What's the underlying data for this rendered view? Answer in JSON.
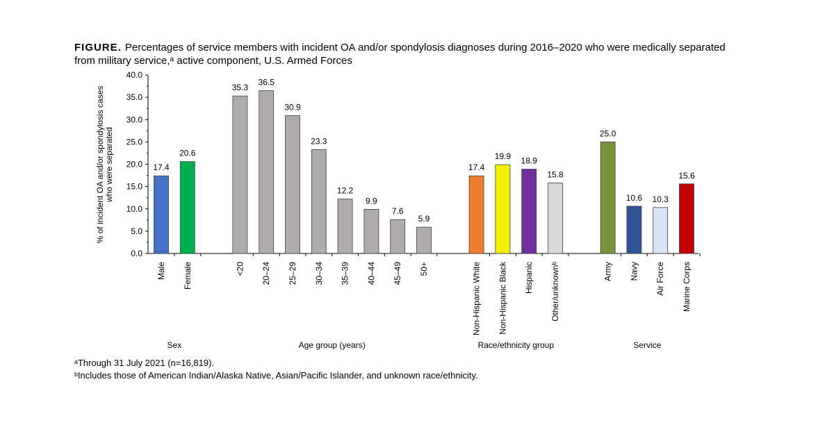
{
  "chart_data": {
    "type": "bar",
    "title_label": "FIGURE.",
    "title_lines": [
      "Percentages of service members with incident OA and/or spondylosis diagnoses during 2016–2020 who were medically separated",
      "from military service,ᵃ active component, U.S. Armed Forces"
    ],
    "ylabel": [
      "% of incident OA and/or spondylosis cases",
      "who were separated"
    ],
    "ylim": [
      0,
      40
    ],
    "yticks": [
      {
        "value": 0,
        "label": "0.0"
      },
      {
        "value": 5,
        "label": "5.0"
      },
      {
        "value": 10,
        "label": "10.0"
      },
      {
        "value": 15,
        "label": "15.0"
      },
      {
        "value": 20,
        "label": "20.0"
      },
      {
        "value": 25,
        "label": "25.0"
      },
      {
        "value": 30,
        "label": "30.0"
      },
      {
        "value": 35,
        "label": "35.0"
      },
      {
        "value": 40,
        "label": "40.0"
      }
    ],
    "groups": [
      {
        "name": "Sex",
        "categories": [
          "Male",
          "Female"
        ],
        "values": [
          17.4,
          20.6
        ],
        "value_labels": [
          "17.4",
          "20.6"
        ],
        "colors": [
          "#4472c4",
          "#00b050"
        ]
      },
      {
        "name": "Age group (years)",
        "categories": [
          "<20",
          "20–24",
          "25–29",
          "30–34",
          "35–39",
          "40–44",
          "45–49",
          "50+"
        ],
        "values": [
          35.3,
          36.5,
          30.9,
          23.3,
          12.2,
          9.9,
          7.6,
          5.9
        ],
        "value_labels": [
          "35.3",
          "36.5",
          "30.9",
          "23.3",
          "12.2",
          "9.9",
          "7.6",
          "5.9"
        ],
        "colors": [
          "#afabab",
          "#afabab",
          "#afabab",
          "#afabab",
          "#afabab",
          "#afabab",
          "#afabab",
          "#afabab"
        ]
      },
      {
        "name": "Race/ethnicity group",
        "categories": [
          "Non-Hispanic White",
          "Non-Hispanic Black",
          "Hispanic",
          "Other/unknownᵇ"
        ],
        "values": [
          17.4,
          19.9,
          18.9,
          15.8
        ],
        "value_labels": [
          "17.4",
          "19.9",
          "18.9",
          "15.8"
        ],
        "colors": [
          "#ed7d31",
          "#f2f200",
          "#7030a0",
          "#d9d9d9"
        ]
      },
      {
        "name": "Service",
        "categories": [
          "Army",
          "Navy",
          "Air Force",
          "Marine Corps"
        ],
        "values": [
          25.0,
          10.6,
          10.3,
          15.6
        ],
        "value_labels": [
          "25.0",
          "10.6",
          "10.3",
          "15.6"
        ],
        "colors": [
          "#77933c",
          "#2f5597",
          "#dae3f3",
          "#c00000"
        ]
      }
    ],
    "footnotes": [
      "ᵃThrough 31 July 2021 (n=16,819).",
      "ᵇIncludes those of American Indian/Alaska Native, Asian/Pacific Islander, and unknown race/ethnicity."
    ]
  }
}
